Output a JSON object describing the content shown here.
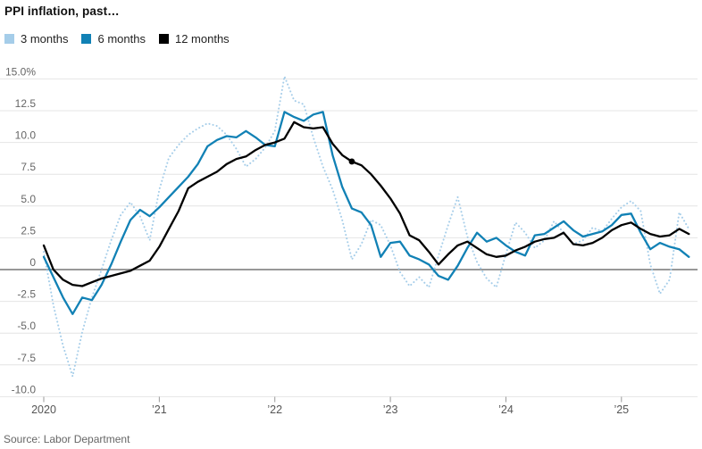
{
  "header": {
    "title": "PPI inflation, past…"
  },
  "source": {
    "text": "Source: Labor Department"
  },
  "legend": [
    {
      "label": "3 months",
      "color": "#a5cde9"
    },
    {
      "label": "6 months",
      "color": "#1181b5"
    },
    {
      "label": "12 months",
      "color": "#000000"
    }
  ],
  "chart_data": {
    "type": "line",
    "title": "PPI inflation, past…",
    "unit": "percent",
    "x_start": "2020-01",
    "x_end": "2025-08",
    "frequency": "monthly",
    "ylim": [
      -10.0,
      15.0
    ],
    "grid": "horizontal",
    "legend_position": "top-left",
    "y_ticks": [
      {
        "v": 15.0,
        "label": "15.0%"
      },
      {
        "v": 12.5,
        "label": "12.5"
      },
      {
        "v": 10.0,
        "label": "10.0"
      },
      {
        "v": 7.5,
        "label": "7.5"
      },
      {
        "v": 5.0,
        "label": "5.0"
      },
      {
        "v": 2.5,
        "label": "2.5"
      },
      {
        "v": 0,
        "label": "0"
      },
      {
        "v": -2.5,
        "label": "-2.5"
      },
      {
        "v": -5.0,
        "label": "-5.0"
      },
      {
        "v": -7.5,
        "label": "-7.5"
      },
      {
        "v": -10.0,
        "label": "-10.0"
      }
    ],
    "x_ticks": [
      {
        "month_index": 0,
        "label": "2020"
      },
      {
        "month_index": 12,
        "label": "’21"
      },
      {
        "month_index": 24,
        "label": "’22"
      },
      {
        "month_index": 36,
        "label": "’23"
      },
      {
        "month_index": 48,
        "label": "’24"
      },
      {
        "month_index": 60,
        "label": "’25"
      }
    ],
    "series": [
      {
        "name": "3 months",
        "style": "dotted",
        "color": "#a5cde9",
        "values": [
          1.4,
          -2.8,
          -6.0,
          -8.4,
          -4.9,
          -2.2,
          0.0,
          2.3,
          4.3,
          5.3,
          4.2,
          2.3,
          6.3,
          8.8,
          9.8,
          10.6,
          11.1,
          11.5,
          11.3,
          10.6,
          9.5,
          8.1,
          8.7,
          9.6,
          10.9,
          15.2,
          13.3,
          13.0,
          10.4,
          8.1,
          6.3,
          3.9,
          0.8,
          2.0,
          3.9,
          3.5,
          1.9,
          -0.2,
          -1.3,
          -0.6,
          -1.4,
          1.1,
          3.5,
          5.7,
          2.6,
          0.6,
          -0.7,
          -1.4,
          1.2,
          3.7,
          2.9,
          1.7,
          2.3,
          3.8,
          2.9,
          2.0,
          2.3,
          3.3,
          3.0,
          4.0,
          4.9,
          5.4,
          4.6,
          0.4,
          -1.9,
          -0.8,
          4.5,
          3.2
        ]
      },
      {
        "name": "6 months",
        "style": "solid",
        "color": "#1181b5",
        "values": [
          1.0,
          -0.6,
          -2.2,
          -3.5,
          -2.2,
          -2.4,
          -1.2,
          0.4,
          2.2,
          3.9,
          4.7,
          4.2,
          4.9,
          5.7,
          6.5,
          7.3,
          8.3,
          9.7,
          10.2,
          10.5,
          10.4,
          10.9,
          10.4,
          9.8,
          9.7,
          12.4,
          12.0,
          11.7,
          12.2,
          12.4,
          9.0,
          6.5,
          4.8,
          4.5,
          3.5,
          1.0,
          2.1,
          2.2,
          1.1,
          0.8,
          0.4,
          -0.5,
          -0.8,
          0.3,
          1.7,
          2.9,
          2.2,
          2.5,
          1.9,
          1.4,
          1.1,
          2.7,
          2.8,
          3.3,
          3.8,
          3.1,
          2.6,
          2.8,
          3.0,
          3.5,
          4.3,
          4.4,
          2.9,
          1.6,
          2.1,
          1.8,
          1.6,
          1.0
        ]
      },
      {
        "name": "12 months",
        "style": "solid",
        "color": "#000000",
        "values": [
          1.9,
          0.0,
          -0.8,
          -1.2,
          -1.3,
          -1.0,
          -0.7,
          -0.5,
          -0.3,
          -0.1,
          0.3,
          0.7,
          1.8,
          3.2,
          4.6,
          6.4,
          6.9,
          7.3,
          7.7,
          8.3,
          8.7,
          8.9,
          9.4,
          9.8,
          10.0,
          10.3,
          11.6,
          11.2,
          11.1,
          11.2,
          9.9,
          9.0,
          8.5,
          8.2,
          7.5,
          6.6,
          5.6,
          4.4,
          2.7,
          2.3,
          1.4,
          0.4,
          1.2,
          1.9,
          2.2,
          1.7,
          1.2,
          1.0,
          1.1,
          1.5,
          1.8,
          2.2,
          2.4,
          2.5,
          2.9,
          2.0,
          1.9,
          2.1,
          2.5,
          3.1,
          3.5,
          3.7,
          3.2,
          2.8,
          2.6,
          2.7,
          3.2,
          2.8
        ]
      }
    ],
    "point_marker": {
      "series": "12 months",
      "month_index": 32,
      "month": "2022-09",
      "value": 8.5
    }
  }
}
